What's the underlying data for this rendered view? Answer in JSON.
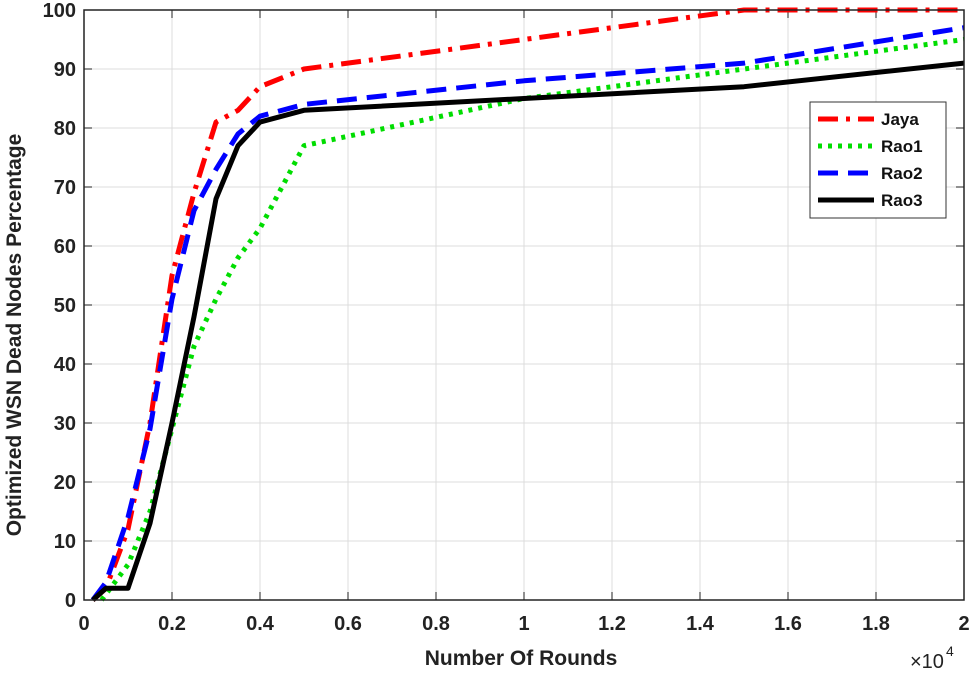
{
  "chart_data": {
    "type": "line",
    "title": "",
    "xlabel": "Number Of Rounds",
    "ylabel": "Optimized WSN Dead Nodes Percentage",
    "x_multiplier_label": "×10",
    "x_multiplier_exponent": "4",
    "xlim": [
      0,
      2
    ],
    "ylim": [
      0,
      100
    ],
    "xticks": [
      "0",
      "0.2",
      "0.4",
      "0.6",
      "0.8",
      "1",
      "1.2",
      "1.4",
      "1.6",
      "1.8",
      "2"
    ],
    "yticks": [
      "0",
      "10",
      "20",
      "30",
      "40",
      "50",
      "60",
      "70",
      "80",
      "90",
      "100"
    ],
    "grid": true,
    "legend_position": "upper-right",
    "series": [
      {
        "name": "Jaya",
        "color": "#ff0000",
        "style": "dashdot",
        "x": [
          0.02,
          0.05,
          0.1,
          0.15,
          0.2,
          0.25,
          0.3,
          0.35,
          0.4,
          0.5,
          1.0,
          1.5,
          2.0
        ],
        "y": [
          0,
          2,
          12,
          30,
          55,
          69,
          81,
          83,
          87,
          90,
          95,
          100,
          100
        ]
      },
      {
        "name": "Rao1",
        "color": "#00dd00",
        "style": "dotted",
        "x": [
          0.04,
          0.1,
          0.15,
          0.2,
          0.25,
          0.3,
          0.35,
          0.4,
          0.5,
          1.0,
          1.5,
          2.0
        ],
        "y": [
          0,
          6,
          15,
          29,
          43,
          51,
          58,
          63,
          77,
          85,
          90,
          95
        ]
      },
      {
        "name": "Rao2",
        "color": "#0000ff",
        "style": "dashed",
        "x": [
          0.02,
          0.05,
          0.1,
          0.15,
          0.2,
          0.25,
          0.3,
          0.35,
          0.4,
          0.5,
          1.0,
          1.5,
          2.0
        ],
        "y": [
          0,
          3,
          14,
          29,
          51,
          66,
          73,
          79,
          82,
          84,
          88,
          91,
          97
        ]
      },
      {
        "name": "Rao3",
        "color": "#000000",
        "style": "solid",
        "x": [
          0.02,
          0.05,
          0.1,
          0.15,
          0.2,
          0.25,
          0.3,
          0.35,
          0.4,
          0.5,
          1.0,
          1.5,
          2.0
        ],
        "y": [
          0,
          2,
          2,
          13,
          30,
          48,
          68,
          77,
          81,
          83,
          85,
          87,
          91
        ]
      }
    ]
  }
}
